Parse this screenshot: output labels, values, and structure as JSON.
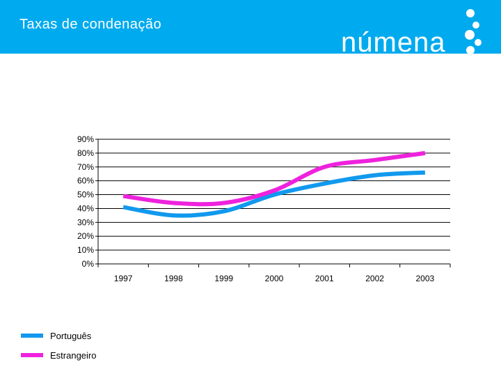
{
  "header": {
    "title": "Taxas de condenação",
    "brand": "númena",
    "background": "#00aaee"
  },
  "chart_data": {
    "type": "line",
    "title": "Taxas de condenação",
    "xlabel": "",
    "ylabel": "",
    "categories": [
      "1997",
      "1998",
      "1999",
      "2000",
      "2001",
      "2002",
      "2003"
    ],
    "y_ticks": [
      "0%",
      "10%",
      "20%",
      "30%",
      "40%",
      "50%",
      "60%",
      "70%",
      "80%",
      "90%"
    ],
    "ylim": [
      0,
      90
    ],
    "grid": true,
    "legend_position": "bottom-left",
    "series": [
      {
        "name": "Português",
        "color": "#1199ee",
        "values": [
          41,
          35,
          38,
          50,
          58,
          64,
          66
        ]
      },
      {
        "name": "Estrangeiro",
        "color": "#ee22dd",
        "values": [
          49,
          44,
          44,
          53,
          70,
          75,
          80
        ]
      }
    ]
  }
}
